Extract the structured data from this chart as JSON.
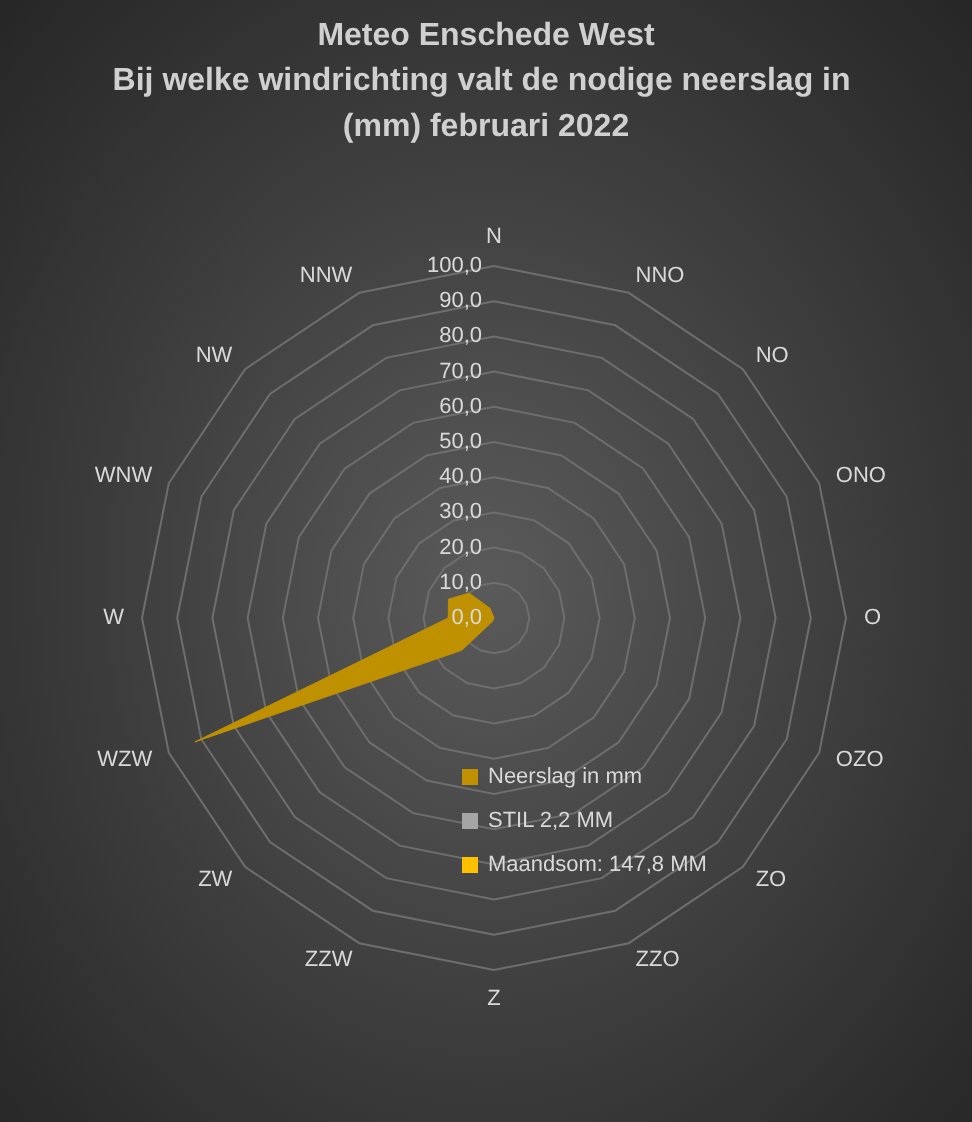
{
  "chart_data": {
    "type": "radar",
    "title": "Meteo Enschede West",
    "subtitle": "Bij welke windrichting valt de nodige neerslag in (mm) februari 2022",
    "categories": [
      "N",
      "NNO",
      "NO",
      "ONO",
      "O",
      "OZO",
      "ZO",
      "ZZO",
      "Z",
      "ZZW",
      "ZW",
      "WZW",
      "W",
      "WNW",
      "NW",
      "NNW"
    ],
    "series": [
      {
        "name": "Neerslag in mm",
        "color": "#bf9000",
        "values": [
          0,
          0,
          0,
          0,
          0,
          0,
          0,
          0,
          0,
          1,
          13,
          92,
          13,
          14,
          10,
          3
        ]
      },
      {
        "name": "STIL 2,2 MM",
        "color": "#a5a5a5",
        "values": [
          null,
          null,
          null,
          null,
          null,
          null,
          null,
          null,
          null,
          null,
          null,
          null,
          null,
          null,
          null,
          null
        ]
      },
      {
        "name": "Maandsom: 147,8 MM",
        "color": "#ffc000",
        "values": [
          null,
          null,
          null,
          null,
          null,
          null,
          null,
          null,
          null,
          null,
          null,
          null,
          null,
          null,
          null,
          null
        ]
      }
    ],
    "ylim": [
      0,
      100
    ],
    "yticks": [
      {
        "value": 0,
        "label": "0,0"
      },
      {
        "value": 10,
        "label": "10,0"
      },
      {
        "value": 20,
        "label": "20,0"
      },
      {
        "value": 30,
        "label": "30,0"
      },
      {
        "value": 40,
        "label": "40,0"
      },
      {
        "value": 50,
        "label": "50,0"
      },
      {
        "value": 60,
        "label": "60,0"
      },
      {
        "value": 70,
        "label": "70,0"
      },
      {
        "value": 80,
        "label": "80,0"
      },
      {
        "value": 90,
        "label": "90,0"
      },
      {
        "value": 100,
        "label": "100,0"
      }
    ],
    "grid": true,
    "legend": "bottom",
    "marker": "none"
  }
}
